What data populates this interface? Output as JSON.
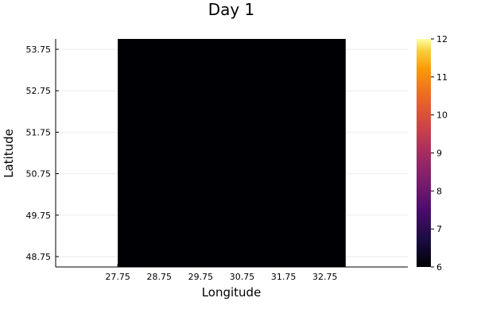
{
  "chart_data": {
    "type": "heatmap",
    "title": "Day 1",
    "xlabel": "Longitude",
    "ylabel": "Latitude",
    "x_ticks": [
      "27.75",
      "28.75",
      "29.75",
      "30.75",
      "31.75",
      "32.75"
    ],
    "y_ticks": [
      "48.75",
      "49.75",
      "50.75",
      "51.75",
      "52.75",
      "53.75"
    ],
    "x_values": [
      27.75,
      28.75,
      29.75,
      30.75,
      31.75,
      32.75
    ],
    "y_values": [
      48.75,
      49.75,
      50.75,
      51.75,
      52.75,
      53.75
    ],
    "xlim": [
      26.25,
      34.75
    ],
    "ylim": [
      48.5,
      54.0
    ],
    "cell_x_edges": [
      27.75,
      33.25
    ],
    "cell_y_edges": [
      48.5,
      54.0
    ],
    "cell_value": 6,
    "cell_color": "#000004",
    "colorbar": {
      "min": 6,
      "max": 12,
      "ticks": [
        "6",
        "7",
        "8",
        "9",
        "10",
        "11",
        "12"
      ],
      "colormap": "inferno"
    },
    "grid": true
  }
}
